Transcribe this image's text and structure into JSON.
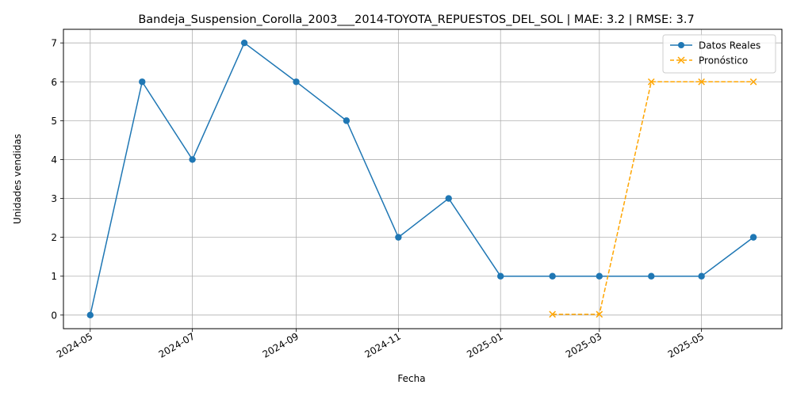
{
  "chart_data": {
    "type": "line",
    "title": "Bandeja_Suspension_Corolla_2003___2014-TOYOTA_REPUESTOS_DEL_SOL | MAE: 3.2 | RMSE: 3.7",
    "xlabel": "Fecha",
    "ylabel": "Unidades vendidas",
    "x_ticks": [
      "2024-05",
      "2024-07",
      "2024-09",
      "2024-11",
      "2025-01",
      "2025-03",
      "2025-05"
    ],
    "y_ticks": [
      0,
      1,
      2,
      3,
      4,
      5,
      6,
      7
    ],
    "ylim": [
      -0.35,
      7.35
    ],
    "xlim": [
      "2024-04-15",
      "2025-06-18"
    ],
    "grid": true,
    "legend_position": "top-right",
    "series": [
      {
        "name": "Datos Reales",
        "color": "#1f77b4",
        "style": "solid",
        "marker": "circle",
        "x": [
          "2024-05-01",
          "2024-06-01",
          "2024-07-01",
          "2024-08-01",
          "2024-09-01",
          "2024-10-01",
          "2024-11-01",
          "2024-12-01",
          "2025-01-01",
          "2025-02-01",
          "2025-03-01",
          "2025-04-01",
          "2025-05-01",
          "2025-06-01"
        ],
        "values": [
          0,
          6,
          4,
          7,
          6,
          5,
          2,
          3,
          1,
          1,
          1,
          1,
          1,
          2
        ]
      },
      {
        "name": "Pronóstico",
        "color": "#ffa500",
        "style": "dashed",
        "marker": "x",
        "x": [
          "2025-02-01",
          "2025-03-01",
          "2025-04-01",
          "2025-05-01",
          "2025-06-01"
        ],
        "values": [
          0.02,
          0.02,
          6,
          6,
          6
        ]
      }
    ]
  }
}
